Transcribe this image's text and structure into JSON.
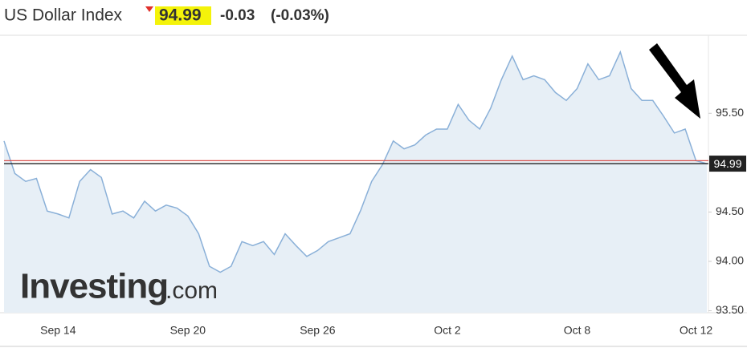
{
  "chart_data": {
    "type": "line",
    "title": "US Dollar Index",
    "change": "-0.03",
    "change_pct": "(-0.03%)",
    "watermark_brand": "Investing",
    "watermark_domain": ".com",
    "categories": [
      null,
      null,
      null,
      null,
      null,
      "Sep 14",
      null,
      null,
      null,
      null,
      null,
      null,
      null,
      null,
      null,
      null,
      null,
      "Sep 20",
      null,
      null,
      null,
      null,
      null,
      null,
      null,
      null,
      null,
      null,
      null,
      "Sep 26",
      null,
      null,
      null,
      null,
      null,
      null,
      null,
      null,
      null,
      null,
      null,
      "Oct 2",
      null,
      null,
      null,
      null,
      null,
      null,
      null,
      null,
      null,
      null,
      null,
      "Oct 8",
      null,
      null,
      null,
      null,
      null,
      null,
      null,
      null,
      null,
      null,
      "Oct 12",
      null
    ],
    "series": [
      {
        "color": "#8ab0d8",
        "values": [
          95.22,
          94.89,
          94.81,
          94.84,
          94.51,
          94.48,
          94.44,
          94.81,
          94.93,
          94.85,
          94.48,
          94.51,
          94.44,
          94.61,
          94.51,
          94.57,
          94.54,
          94.46,
          94.28,
          93.95,
          93.89,
          93.95,
          94.2,
          94.16,
          94.2,
          94.07,
          94.28,
          94.16,
          94.05,
          94.11,
          94.2,
          94.24,
          94.28,
          94.52,
          94.81,
          94.98,
          95.22,
          95.14,
          95.18,
          95.28,
          95.34,
          95.34,
          95.59,
          95.43,
          95.34,
          95.55,
          95.84,
          96.08,
          95.84,
          95.88,
          95.84,
          95.71,
          95.63,
          95.75,
          96.0,
          95.84,
          95.88,
          96.12,
          95.75,
          95.63,
          95.63,
          95.47,
          95.3,
          95.34,
          95.02,
          94.99
        ]
      }
    ],
    "reference_line": 95.02,
    "reference_color": "#d9534f",
    "ylim": [
      93.48,
      96.29
    ],
    "yticks": [
      {
        "value": 93.5,
        "label": "93.50"
      },
      {
        "value": 94,
        "label": "94.00"
      },
      {
        "value": 94.5,
        "label": "94.50"
      },
      {
        "value": 95.5,
        "label": "95.50"
      }
    ],
    "grid": false
  }
}
